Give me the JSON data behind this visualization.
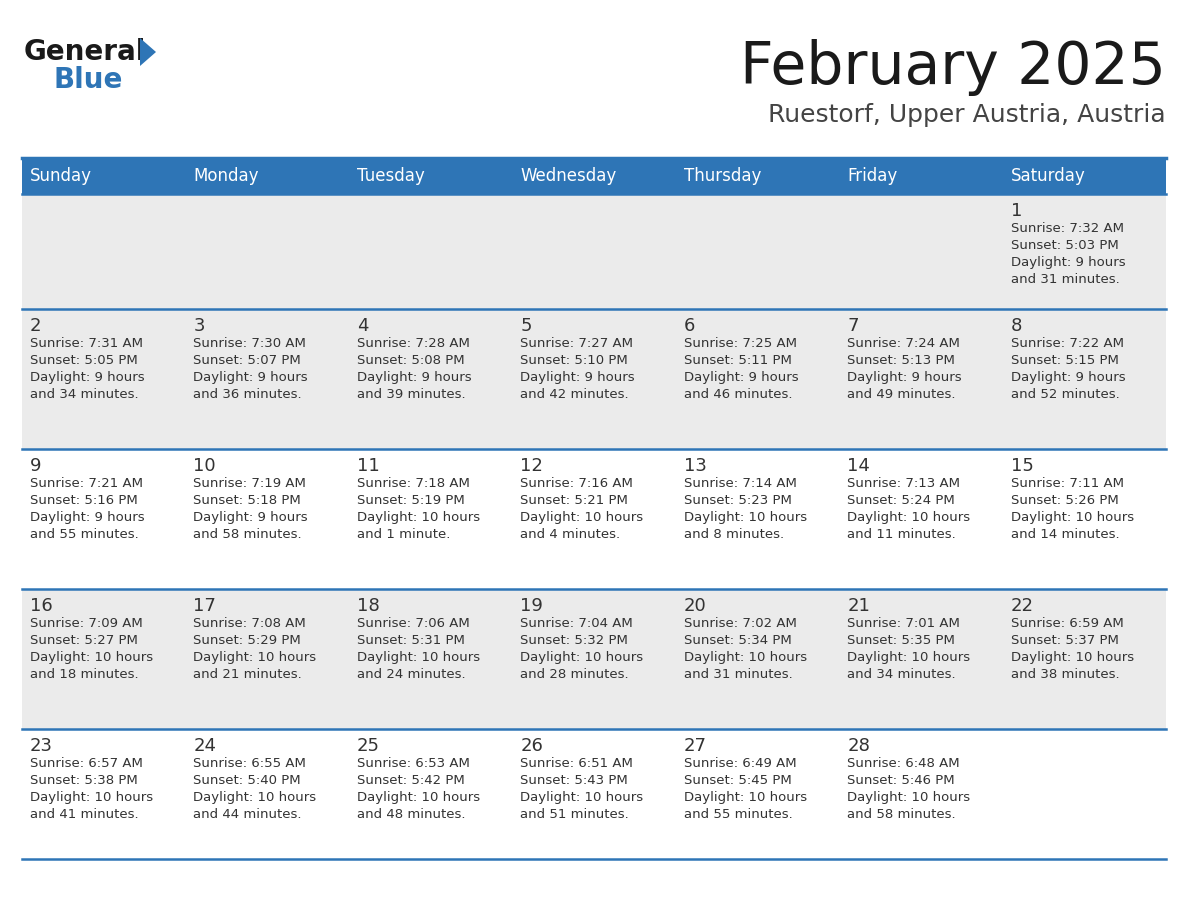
{
  "title": "February 2025",
  "subtitle": "Ruestorf, Upper Austria, Austria",
  "header_bg": "#2E75B6",
  "header_text": "#FFFFFF",
  "row0_bg": "#EDEDED",
  "row1_bg": "#EDEDED",
  "row2_bg": "#FFFFFF",
  "row3_bg": "#EDEDED",
  "row4_bg": "#FFFFFF",
  "day_number_color": "#333333",
  "text_color": "#333333",
  "line_color": "#2E75B6",
  "days_of_week": [
    "Sunday",
    "Monday",
    "Tuesday",
    "Wednesday",
    "Thursday",
    "Friday",
    "Saturday"
  ],
  "calendar_data": [
    [
      null,
      null,
      null,
      null,
      null,
      null,
      {
        "day": "1",
        "sunrise": "7:32 AM",
        "sunset": "5:03 PM",
        "daylight": "9 hours",
        "daylight2": "and 31 minutes."
      }
    ],
    [
      {
        "day": "2",
        "sunrise": "7:31 AM",
        "sunset": "5:05 PM",
        "daylight": "9 hours",
        "daylight2": "and 34 minutes."
      },
      {
        "day": "3",
        "sunrise": "7:30 AM",
        "sunset": "5:07 PM",
        "daylight": "9 hours",
        "daylight2": "and 36 minutes."
      },
      {
        "day": "4",
        "sunrise": "7:28 AM",
        "sunset": "5:08 PM",
        "daylight": "9 hours",
        "daylight2": "and 39 minutes."
      },
      {
        "day": "5",
        "sunrise": "7:27 AM",
        "sunset": "5:10 PM",
        "daylight": "9 hours",
        "daylight2": "and 42 minutes."
      },
      {
        "day": "6",
        "sunrise": "7:25 AM",
        "sunset": "5:11 PM",
        "daylight": "9 hours",
        "daylight2": "and 46 minutes."
      },
      {
        "day": "7",
        "sunrise": "7:24 AM",
        "sunset": "5:13 PM",
        "daylight": "9 hours",
        "daylight2": "and 49 minutes."
      },
      {
        "day": "8",
        "sunrise": "7:22 AM",
        "sunset": "5:15 PM",
        "daylight": "9 hours",
        "daylight2": "and 52 minutes."
      }
    ],
    [
      {
        "day": "9",
        "sunrise": "7:21 AM",
        "sunset": "5:16 PM",
        "daylight": "9 hours",
        "daylight2": "and 55 minutes."
      },
      {
        "day": "10",
        "sunrise": "7:19 AM",
        "sunset": "5:18 PM",
        "daylight": "9 hours",
        "daylight2": "and 58 minutes."
      },
      {
        "day": "11",
        "sunrise": "7:18 AM",
        "sunset": "5:19 PM",
        "daylight": "10 hours",
        "daylight2": "and 1 minute."
      },
      {
        "day": "12",
        "sunrise": "7:16 AM",
        "sunset": "5:21 PM",
        "daylight": "10 hours",
        "daylight2": "and 4 minutes."
      },
      {
        "day": "13",
        "sunrise": "7:14 AM",
        "sunset": "5:23 PM",
        "daylight": "10 hours",
        "daylight2": "and 8 minutes."
      },
      {
        "day": "14",
        "sunrise": "7:13 AM",
        "sunset": "5:24 PM",
        "daylight": "10 hours",
        "daylight2": "and 11 minutes."
      },
      {
        "day": "15",
        "sunrise": "7:11 AM",
        "sunset": "5:26 PM",
        "daylight": "10 hours",
        "daylight2": "and 14 minutes."
      }
    ],
    [
      {
        "day": "16",
        "sunrise": "7:09 AM",
        "sunset": "5:27 PM",
        "daylight": "10 hours",
        "daylight2": "and 18 minutes."
      },
      {
        "day": "17",
        "sunrise": "7:08 AM",
        "sunset": "5:29 PM",
        "daylight": "10 hours",
        "daylight2": "and 21 minutes."
      },
      {
        "day": "18",
        "sunrise": "7:06 AM",
        "sunset": "5:31 PM",
        "daylight": "10 hours",
        "daylight2": "and 24 minutes."
      },
      {
        "day": "19",
        "sunrise": "7:04 AM",
        "sunset": "5:32 PM",
        "daylight": "10 hours",
        "daylight2": "and 28 minutes."
      },
      {
        "day": "20",
        "sunrise": "7:02 AM",
        "sunset": "5:34 PM",
        "daylight": "10 hours",
        "daylight2": "and 31 minutes."
      },
      {
        "day": "21",
        "sunrise": "7:01 AM",
        "sunset": "5:35 PM",
        "daylight": "10 hours",
        "daylight2": "and 34 minutes."
      },
      {
        "day": "22",
        "sunrise": "6:59 AM",
        "sunset": "5:37 PM",
        "daylight": "10 hours",
        "daylight2": "and 38 minutes."
      }
    ],
    [
      {
        "day": "23",
        "sunrise": "6:57 AM",
        "sunset": "5:38 PM",
        "daylight": "10 hours",
        "daylight2": "and 41 minutes."
      },
      {
        "day": "24",
        "sunrise": "6:55 AM",
        "sunset": "5:40 PM",
        "daylight": "10 hours",
        "daylight2": "and 44 minutes."
      },
      {
        "day": "25",
        "sunrise": "6:53 AM",
        "sunset": "5:42 PM",
        "daylight": "10 hours",
        "daylight2": "and 48 minutes."
      },
      {
        "day": "26",
        "sunrise": "6:51 AM",
        "sunset": "5:43 PM",
        "daylight": "10 hours",
        "daylight2": "and 51 minutes."
      },
      {
        "day": "27",
        "sunrise": "6:49 AM",
        "sunset": "5:45 PM",
        "daylight": "10 hours",
        "daylight2": "and 55 minutes."
      },
      {
        "day": "28",
        "sunrise": "6:48 AM",
        "sunset": "5:46 PM",
        "daylight": "10 hours",
        "daylight2": "and 58 minutes."
      },
      null
    ]
  ],
  "row_bgs": [
    "#EBEBEB",
    "#EBEBEB",
    "#FFFFFF",
    "#EBEBEB",
    "#FFFFFF"
  ],
  "logo_general_color": "#1A1A1A",
  "logo_blue_color": "#2E75B6",
  "logo_triangle_color": "#2E75B6"
}
